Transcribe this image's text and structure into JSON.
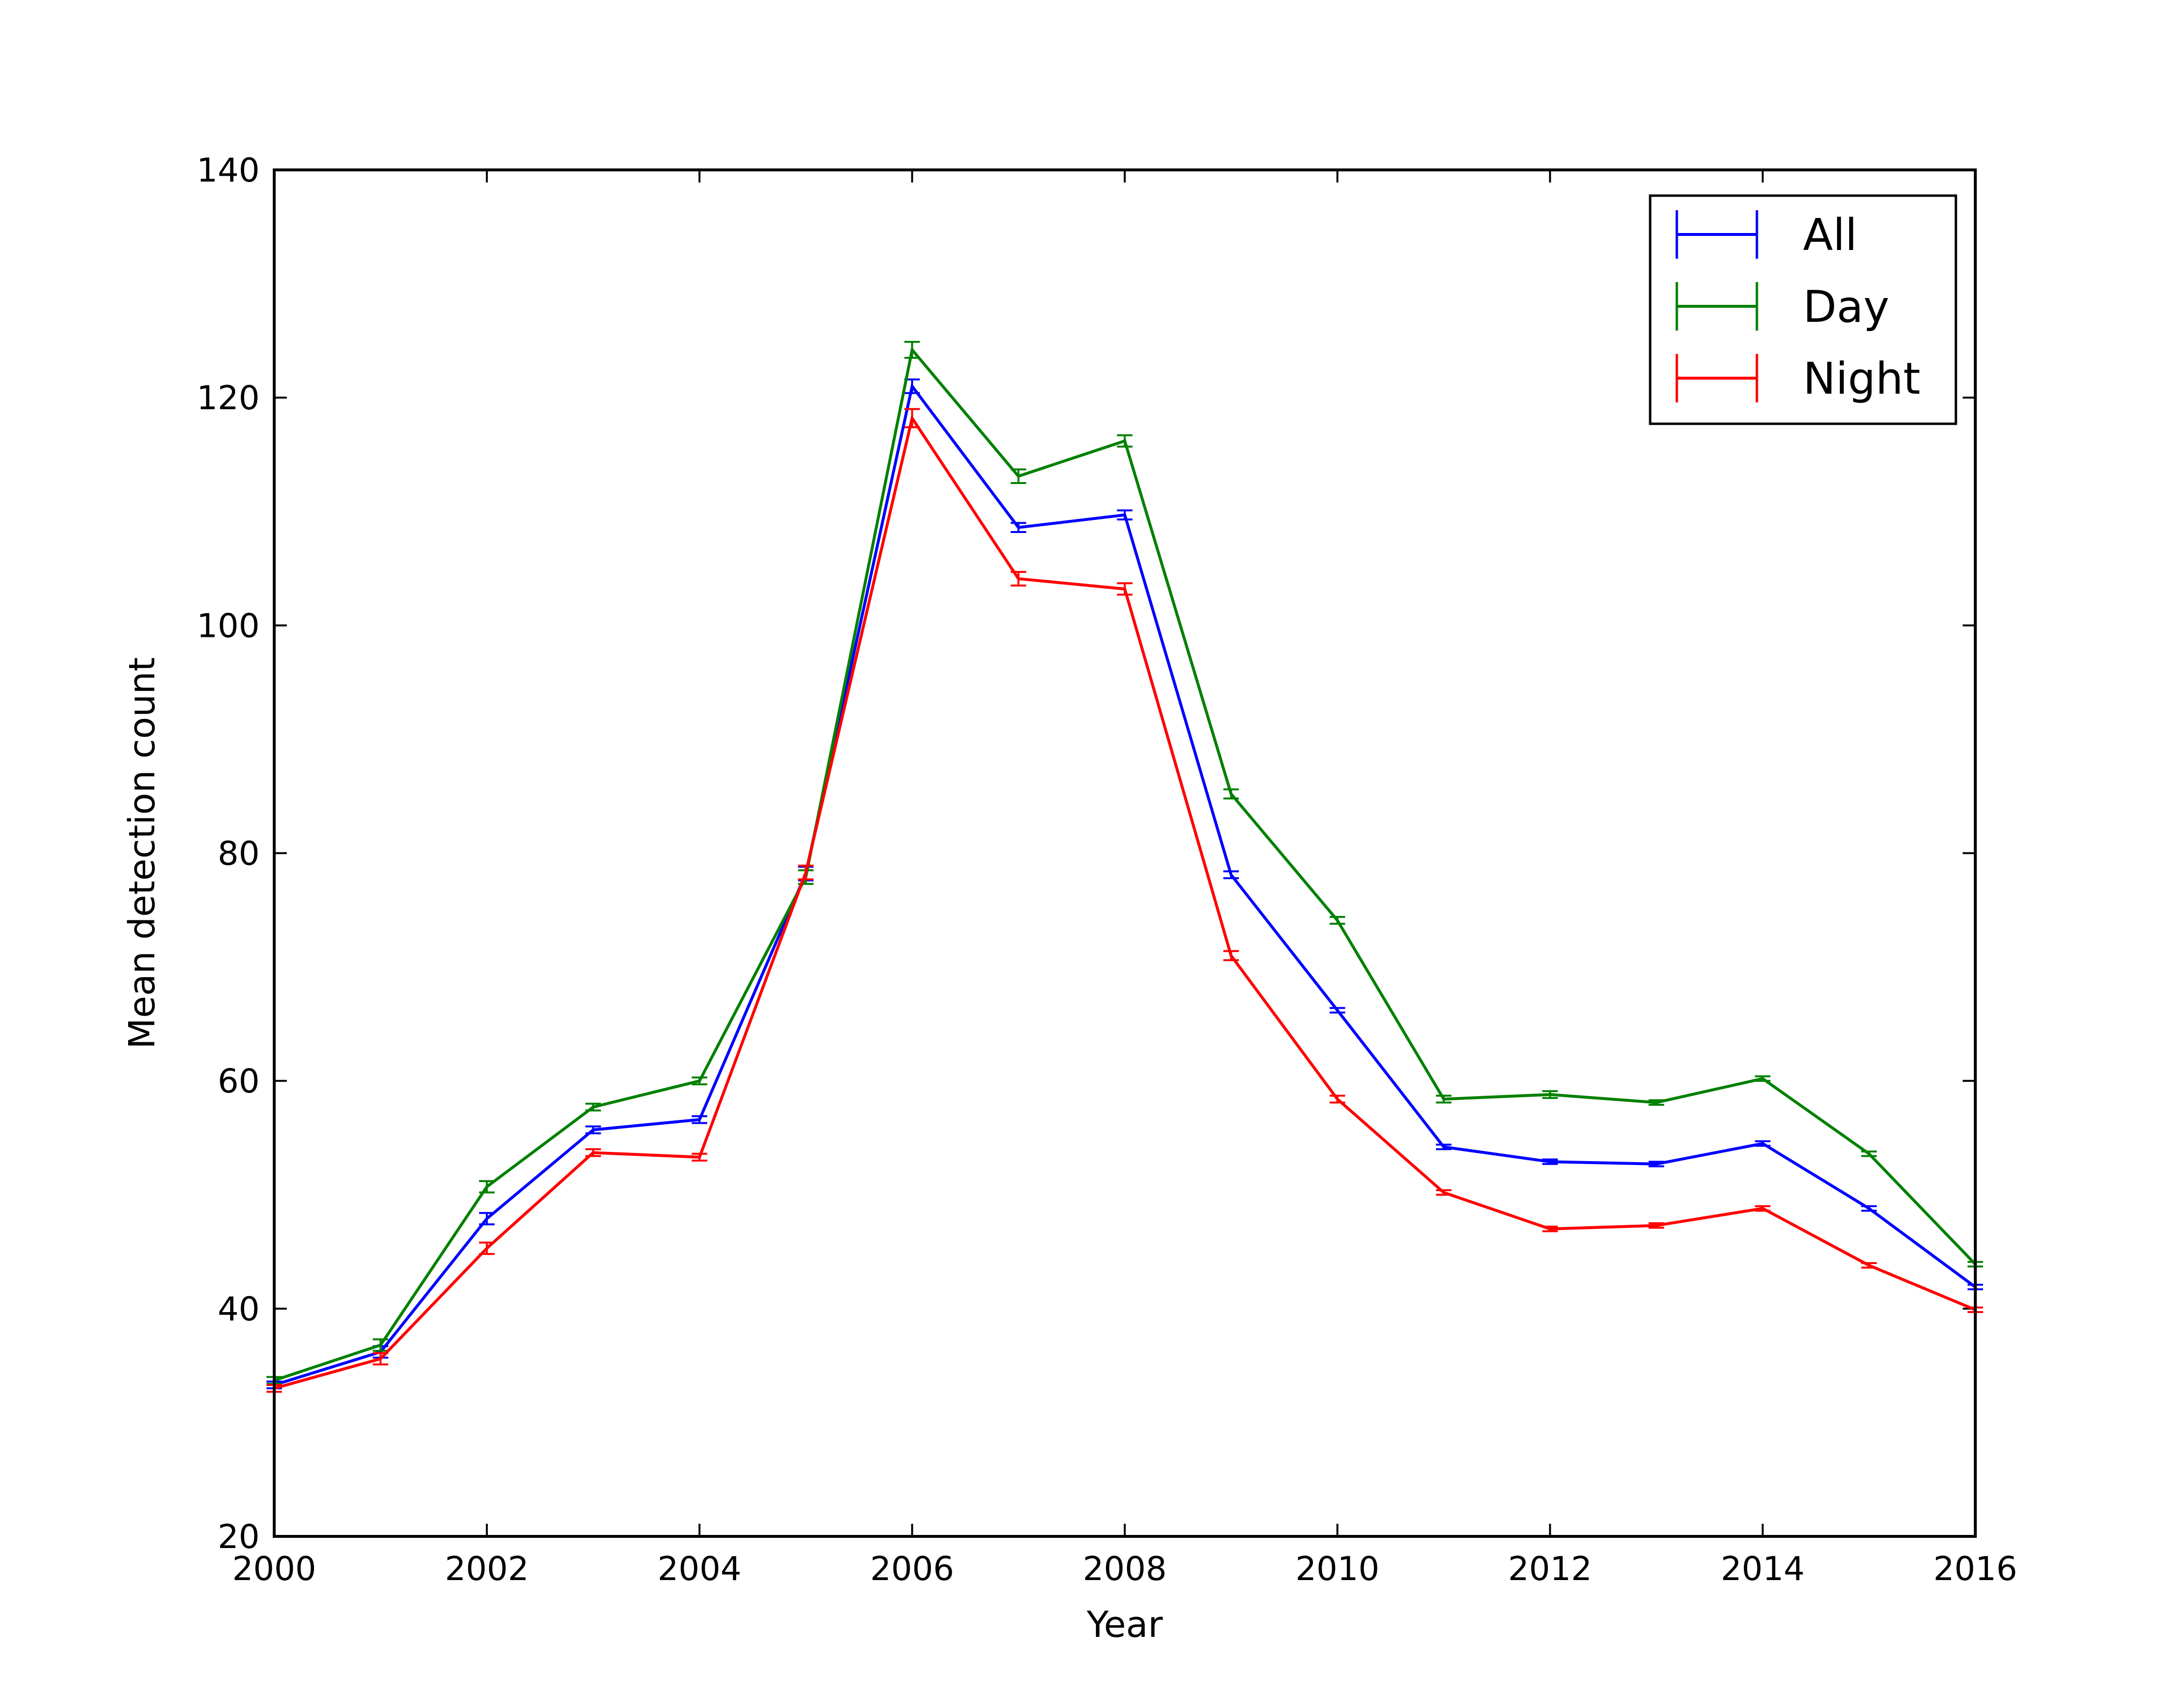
{
  "chart_data": {
    "type": "line",
    "title": "",
    "xlabel": "Year",
    "ylabel": "Mean detection count",
    "xlim": [
      2000,
      2016
    ],
    "ylim": [
      20,
      140
    ],
    "xticks": [
      2000,
      2002,
      2004,
      2006,
      2008,
      2010,
      2012,
      2014,
      2016
    ],
    "yticks": [
      20,
      40,
      60,
      80,
      100,
      120,
      140
    ],
    "grid": false,
    "legend_position": "top-right",
    "x": [
      2000,
      2001,
      2002,
      2003,
      2004,
      2005,
      2006,
      2007,
      2008,
      2009,
      2010,
      2011,
      2012,
      2013,
      2014,
      2015,
      2016
    ],
    "series": [
      {
        "name": "All",
        "color": "#0000ff",
        "values": [
          33.3,
          36.2,
          47.9,
          55.7,
          56.6,
          78.2,
          121.0,
          108.6,
          109.7,
          78.1,
          66.2,
          54.2,
          52.9,
          52.7,
          54.5,
          48.8,
          41.9
        ],
        "errors": [
          0.3,
          0.5,
          0.5,
          0.3,
          0.3,
          0.6,
          0.6,
          0.4,
          0.4,
          0.3,
          0.2,
          0.2,
          0.2,
          0.2,
          0.2,
          0.2,
          0.2
        ]
      },
      {
        "name": "Day",
        "color": "#008000",
        "values": [
          33.7,
          36.8,
          50.7,
          57.7,
          60.0,
          77.9,
          124.2,
          113.1,
          116.2,
          85.2,
          74.1,
          58.4,
          58.8,
          58.1,
          60.2,
          53.6,
          43.9
        ],
        "errors": [
          0.3,
          0.5,
          0.5,
          0.3,
          0.3,
          0.6,
          0.7,
          0.6,
          0.5,
          0.4,
          0.3,
          0.3,
          0.3,
          0.2,
          0.2,
          0.2,
          0.2
        ]
      },
      {
        "name": "Night",
        "color": "#ff0000",
        "values": [
          33.0,
          35.6,
          45.3,
          53.7,
          53.3,
          78.3,
          118.2,
          104.1,
          103.2,
          71.0,
          58.4,
          50.2,
          47.0,
          47.3,
          48.8,
          43.8,
          39.9
        ],
        "errors": [
          0.3,
          0.5,
          0.5,
          0.3,
          0.3,
          0.6,
          0.8,
          0.6,
          0.5,
          0.4,
          0.3,
          0.2,
          0.2,
          0.2,
          0.2,
          0.2,
          0.2
        ]
      }
    ]
  }
}
